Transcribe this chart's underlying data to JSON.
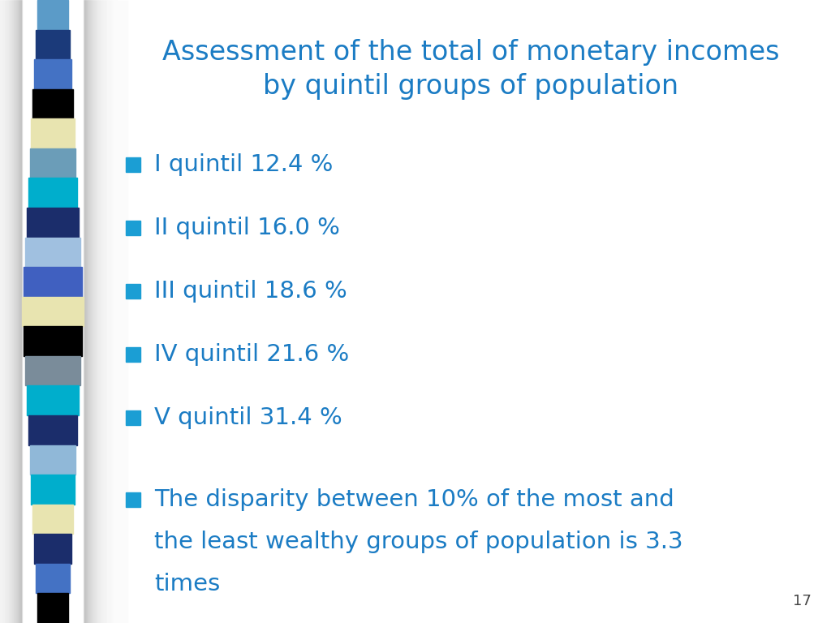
{
  "title": "Assessment of the total of monetary incomes\nby quintil groups of population",
  "title_color": "#1B7CC4",
  "title_fontsize": 24,
  "bullet_color": "#1B9ED4",
  "text_color": "#1B7CC4",
  "bullet_items_line1": [
    "I quintil 12.4 %",
    "II quintil 16.0 %",
    "III quintil 18.6 %",
    "IV quintil 21.6 %",
    "V quintil 31.4 %",
    "The disparity between 10% of the most and"
  ],
  "bullet_items_line2": [
    "",
    "",
    "",
    "",
    "",
    "the least wealthy groups of population is 3.3"
  ],
  "bullet_items_line3": [
    "",
    "",
    "",
    "",
    "",
    "times"
  ],
  "bullet_fontsize": 21,
  "page_number": "17",
  "bg_color": "#FFFFFF",
  "left_bar_colors": [
    "#5B9BC8",
    "#1B3A7A",
    "#4472C4",
    "#000000",
    "#E8E4B0",
    "#6B9DB8",
    "#00AECC",
    "#1B2D6B",
    "#A0C0E0",
    "#4060C0",
    "#E8E4B0",
    "#000000",
    "#7A8C9A",
    "#00AECC",
    "#1B2D6B",
    "#90B8D8",
    "#00AECC",
    "#E8E4B0",
    "#1B2D6B",
    "#4472C4",
    "#000000"
  ]
}
